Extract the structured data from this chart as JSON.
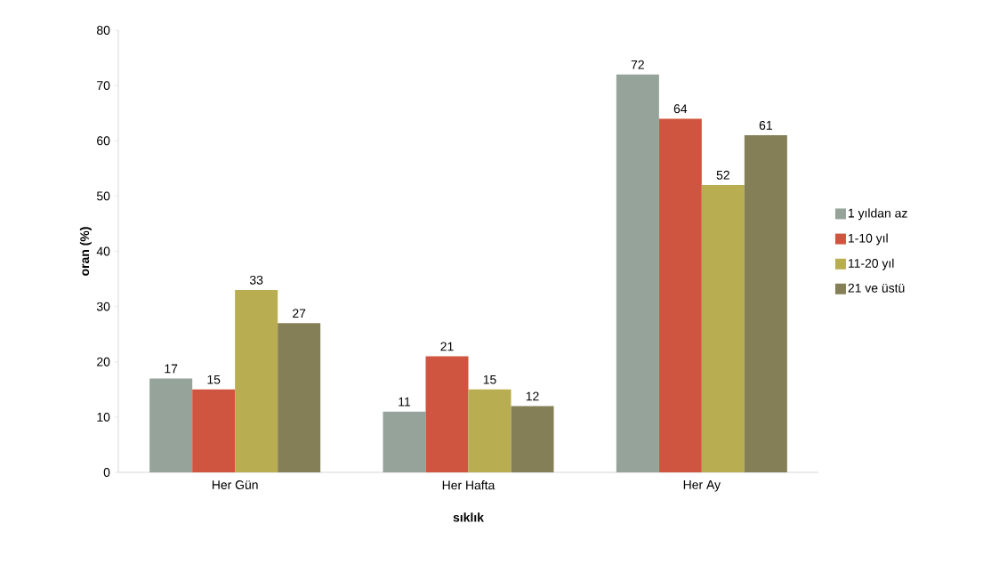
{
  "chart_data": {
    "type": "bar",
    "xlabel": "sıklık",
    "ylabel": "oran (%)",
    "categories": [
      "Her Gün",
      "Her Hafta",
      "Her Ay"
    ],
    "series": [
      {
        "name": "1 yıldan az",
        "color": "#95a39a",
        "values": [
          17,
          11,
          72
        ]
      },
      {
        "name": "1-10 yıl",
        "color": "#d05540",
        "values": [
          15,
          21,
          64
        ]
      },
      {
        "name": "11-20 yıl",
        "color": "#b8ad50",
        "values": [
          33,
          15,
          52
        ]
      },
      {
        "name": "21 ve üstü",
        "color": "#847f56",
        "values": [
          27,
          12,
          61
        ]
      }
    ],
    "ylim": [
      0,
      80
    ],
    "yticks": [
      0,
      10,
      20,
      30,
      40,
      50,
      60,
      70,
      80
    ],
    "data_labels": true,
    "legend": "right"
  }
}
